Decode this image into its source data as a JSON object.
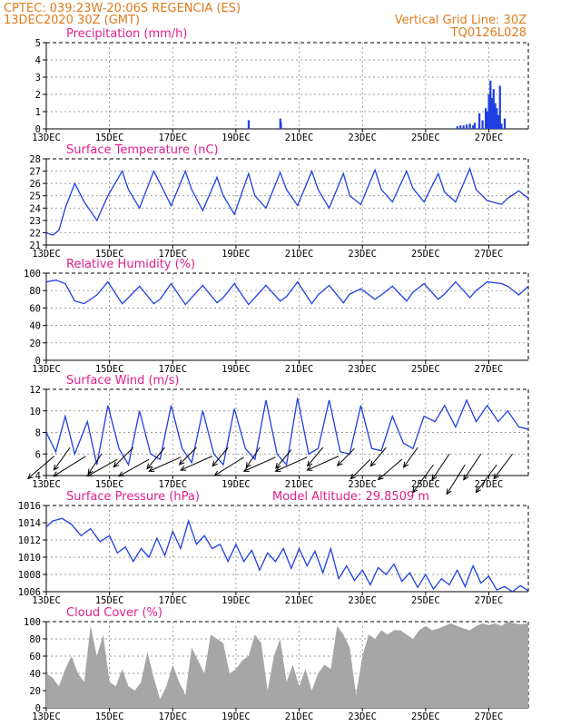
{
  "header": {
    "line1": "CPTEC:   039:23W-20:06S   REGENCIA (ES)",
    "line2": "13DEC2020 30Z (GMT)",
    "right1": "Vertical Grid Line: 30Z",
    "right2": "TQ0126L028"
  },
  "date_labels": [
    "13DEC",
    "15DEC",
    "17DEC",
    "19DEC",
    "21DEC",
    "23DEC",
    "25DEC",
    "27DEC"
  ],
  "colors": {
    "series": "#1f3fe0",
    "cloud": "#a6a6a6",
    "title": "#e0208a",
    "header": "#e07a1a"
  },
  "chart_data": [
    {
      "id": "precip",
      "type": "bar",
      "title": "Precipitation (mm/h)",
      "xlabel": "",
      "ylabel": "",
      "xlim": [
        13.0,
        28.25
      ],
      "ylim": [
        0,
        5
      ],
      "yticks": [
        0,
        1,
        2,
        3,
        4,
        5
      ],
      "x": [
        19.4,
        20.4,
        20.42,
        26.0,
        26.1,
        26.2,
        26.3,
        26.4,
        26.5,
        26.55,
        26.7,
        26.8,
        26.9,
        26.95,
        27.0,
        27.05,
        27.1,
        27.15,
        27.2,
        27.25,
        27.3,
        27.35,
        27.4,
        27.5
      ],
      "values": [
        0.5,
        0.6,
        0.4,
        0.15,
        0.2,
        0.2,
        0.25,
        0.3,
        0.2,
        0.35,
        0.9,
        0.5,
        1.2,
        1.0,
        2.0,
        2.8,
        1.8,
        2.3,
        1.5,
        1.2,
        0.8,
        2.5,
        0.3,
        0.6
      ]
    },
    {
      "id": "temperature",
      "type": "line",
      "title": "Surface Temperature (nC)",
      "xlabel": "",
      "ylabel": "",
      "xlim": [
        13.0,
        28.25
      ],
      "ylim": [
        21,
        28
      ],
      "yticks": [
        21,
        22,
        23,
        24,
        25,
        26,
        27,
        28
      ],
      "x": [
        13.0,
        13.2,
        13.4,
        13.6,
        13.9,
        14.2,
        14.6,
        14.95,
        15.4,
        15.6,
        15.95,
        16.4,
        16.6,
        16.95,
        17.4,
        17.6,
        17.95,
        18.4,
        18.6,
        18.95,
        19.4,
        19.6,
        19.95,
        20.4,
        20.6,
        20.95,
        21.4,
        21.6,
        21.95,
        22.4,
        22.6,
        22.95,
        23.4,
        23.6,
        23.95,
        24.4,
        24.6,
        24.95,
        25.4,
        25.6,
        25.95,
        26.4,
        26.6,
        26.95,
        27.4,
        27.6,
        27.95,
        28.25
      ],
      "values": [
        22.0,
        21.8,
        22.2,
        24.0,
        26.0,
        24.5,
        23.0,
        25.0,
        27.0,
        25.5,
        24.0,
        27.0,
        26.0,
        24.2,
        27.0,
        25.5,
        23.8,
        26.5,
        25.0,
        23.5,
        26.8,
        25.0,
        24.0,
        26.9,
        25.5,
        24.2,
        27.0,
        25.5,
        24.0,
        26.8,
        25.0,
        24.3,
        27.1,
        25.5,
        24.5,
        27.0,
        25.6,
        24.5,
        26.8,
        25.3,
        24.5,
        27.2,
        25.5,
        24.6,
        24.3,
        24.8,
        25.4,
        24.8
      ]
    },
    {
      "id": "humidity",
      "type": "line",
      "title": "Relative Humidity (%)",
      "xlabel": "",
      "ylabel": "",
      "xlim": [
        13.0,
        28.25
      ],
      "ylim": [
        0,
        100
      ],
      "yticks": [
        0,
        20,
        40,
        60,
        80,
        100
      ],
      "x": [
        13.0,
        13.3,
        13.6,
        13.9,
        14.2,
        14.6,
        14.95,
        15.4,
        15.6,
        15.95,
        16.4,
        16.6,
        16.95,
        17.4,
        17.6,
        17.95,
        18.4,
        18.6,
        18.95,
        19.4,
        19.6,
        19.95,
        20.4,
        20.6,
        20.95,
        21.4,
        21.6,
        21.95,
        22.4,
        22.6,
        22.95,
        23.4,
        23.6,
        23.95,
        24.4,
        24.6,
        24.95,
        25.4,
        25.6,
        25.95,
        26.4,
        26.6,
        26.95,
        27.4,
        27.6,
        27.95,
        28.25
      ],
      "values": [
        90,
        92,
        88,
        68,
        65,
        75,
        90,
        65,
        72,
        85,
        65,
        70,
        88,
        64,
        72,
        86,
        66,
        72,
        88,
        64,
        72,
        86,
        68,
        73,
        90,
        65,
        75,
        86,
        66,
        76,
        82,
        70,
        75,
        85,
        68,
        78,
        88,
        70,
        76,
        90,
        72,
        80,
        90,
        88,
        85,
        75,
        85
      ]
    },
    {
      "id": "wind",
      "type": "line",
      "title": "Surface Wind (m/s)",
      "xlabel": "",
      "ylabel": "",
      "xlim": [
        13.0,
        28.25
      ],
      "ylim": [
        4,
        12
      ],
      "yticks": [
        4,
        6,
        8,
        10,
        12
      ],
      "x": [
        13.0,
        13.3,
        13.6,
        13.9,
        14.3,
        14.6,
        14.95,
        15.3,
        15.6,
        15.95,
        16.3,
        16.6,
        16.95,
        17.3,
        17.6,
        17.95,
        18.3,
        18.6,
        18.95,
        19.3,
        19.6,
        19.95,
        20.3,
        20.6,
        20.95,
        21.3,
        21.6,
        21.95,
        22.3,
        22.6,
        22.95,
        23.3,
        23.6,
        23.95,
        24.3,
        24.6,
        24.95,
        25.3,
        25.6,
        25.95,
        26.3,
        26.6,
        26.95,
        27.3,
        27.6,
        27.95,
        28.25
      ],
      "values": [
        8.0,
        6.2,
        9.5,
        6.0,
        9.0,
        5.0,
        10.5,
        6.5,
        5.0,
        10.0,
        6.0,
        5.5,
        10.5,
        6.5,
        5.2,
        10.0,
        6.0,
        5.0,
        10.2,
        6.5,
        5.5,
        11.0,
        6.0,
        5.0,
        11.2,
        6.0,
        6.5,
        11.0,
        6.2,
        6.0,
        10.5,
        6.5,
        6.3,
        9.5,
        7.0,
        6.5,
        9.5,
        9.0,
        10.5,
        8.5,
        11.0,
        9.0,
        10.5,
        9.0,
        10.0,
        8.5,
        8.3
      ],
      "arrows": {
        "x": [
          13.25,
          13.75,
          14.25,
          14.75,
          15.25,
          15.75,
          16.25,
          16.75,
          17.25,
          17.75,
          18.25,
          18.75,
          19.25,
          19.75,
          20.25,
          20.75,
          21.25,
          21.75,
          22.25,
          22.75,
          23.25,
          23.75,
          24.25,
          24.75,
          25.25,
          25.75,
          26.25,
          26.75,
          27.25,
          27.75
        ],
        "u": [
          -0.7,
          -0.5,
          -0.8,
          -0.4,
          -0.9,
          -0.6,
          -0.9,
          -0.5,
          -0.9,
          -0.5,
          -0.9,
          -0.5,
          -0.8,
          -0.4,
          -0.9,
          -0.5,
          -0.9,
          -0.5,
          -0.9,
          -0.6,
          -0.6,
          -0.5,
          -0.7,
          -0.5,
          -0.6,
          -0.6,
          -0.5,
          -0.6,
          -0.6,
          -0.6
        ],
        "v": [
          -0.6,
          -0.7,
          -0.5,
          -0.6,
          -0.5,
          -0.6,
          -0.5,
          -0.6,
          -0.4,
          -0.5,
          -0.4,
          -0.6,
          -0.5,
          -0.6,
          -0.4,
          -0.6,
          -0.4,
          -0.6,
          -0.4,
          -0.6,
          -0.6,
          -0.6,
          -0.6,
          -0.7,
          -0.8,
          -0.9,
          -0.8,
          -0.9,
          -0.8,
          -0.8
        ],
        "y": [
          5.8,
          6.6,
          5.8,
          6.0,
          5.5,
          6.6,
          5.5,
          6.6,
          5.7,
          6.6,
          5.8,
          6.6,
          5.7,
          6.6,
          5.7,
          6.4,
          5.7,
          6.6,
          5.8,
          6.5,
          5.5,
          6.6,
          5.5,
          6.6,
          5.0,
          6.0,
          5.0,
          6.0,
          5.0,
          6.0
        ],
        "len": [
          1.0,
          0.8,
          1.1,
          0.7,
          1.0,
          0.8,
          1.0,
          0.8,
          1.0,
          0.7,
          1.0,
          0.7,
          1.0,
          0.7,
          1.0,
          0.7,
          1.0,
          0.7,
          1.0,
          0.7,
          0.8,
          0.7,
          0.9,
          0.7,
          1.0,
          0.9,
          1.0,
          0.9,
          1.0,
          0.9
        ]
      }
    },
    {
      "id": "pressure",
      "type": "line",
      "title": "Surface Pressure (hPa)",
      "annotation": "Model Altitude: 29.8509 m",
      "xlabel": "",
      "ylabel": "",
      "xlim": [
        13.0,
        28.25
      ],
      "ylim": [
        1006,
        1016
      ],
      "yticks": [
        1006,
        1008,
        1010,
        1012,
        1014,
        1016
      ],
      "x": [
        13.0,
        13.2,
        13.5,
        13.8,
        14.1,
        14.4,
        14.7,
        15.0,
        15.25,
        15.5,
        15.75,
        16.0,
        16.25,
        16.5,
        16.75,
        17.0,
        17.25,
        17.5,
        17.75,
        18.0,
        18.25,
        18.5,
        18.75,
        19.0,
        19.25,
        19.5,
        19.75,
        20.0,
        20.25,
        20.5,
        20.75,
        21.0,
        21.25,
        21.5,
        21.75,
        22.0,
        22.25,
        22.5,
        22.75,
        23.0,
        23.25,
        23.5,
        23.75,
        24.0,
        24.25,
        24.5,
        24.75,
        25.0,
        25.25,
        25.5,
        25.75,
        26.0,
        26.25,
        26.5,
        26.75,
        27.0,
        27.25,
        27.5,
        27.75,
        28.0,
        28.25
      ],
      "values": [
        1013.5,
        1014.2,
        1014.5,
        1013.8,
        1012.5,
        1013.3,
        1011.8,
        1012.5,
        1010.5,
        1011.2,
        1009.5,
        1011.0,
        1010.0,
        1012.2,
        1010.2,
        1013.0,
        1011.0,
        1014.2,
        1011.5,
        1012.5,
        1011.0,
        1011.5,
        1009.5,
        1011.5,
        1009.5,
        1010.8,
        1008.5,
        1010.5,
        1009.5,
        1011.0,
        1008.7,
        1011.0,
        1009.0,
        1010.7,
        1008.2,
        1011.0,
        1007.5,
        1009.0,
        1007.3,
        1008.5,
        1006.8,
        1008.8,
        1008.0,
        1009.2,
        1007.2,
        1008.2,
        1006.5,
        1008.0,
        1006.3,
        1007.5,
        1006.8,
        1008.5,
        1006.6,
        1009.0,
        1007.0,
        1007.8,
        1006.2,
        1006.6,
        1006.0,
        1006.7,
        1006.1
      ]
    },
    {
      "id": "cloud",
      "type": "area",
      "title": "Cloud Cover (%)",
      "xlabel": "",
      "ylabel": "",
      "xlim": [
        13.0,
        28.25
      ],
      "ylim": [
        0,
        100
      ],
      "yticks": [
        0,
        20,
        40,
        60,
        80,
        100
      ],
      "x": [
        13.0,
        13.2,
        13.4,
        13.6,
        13.8,
        14.0,
        14.2,
        14.4,
        14.6,
        14.8,
        15.0,
        15.2,
        15.4,
        15.6,
        15.8,
        16.0,
        16.2,
        16.4,
        16.6,
        16.8,
        17.0,
        17.2,
        17.4,
        17.6,
        17.8,
        18.0,
        18.2,
        18.4,
        18.6,
        18.8,
        19.0,
        19.2,
        19.4,
        19.6,
        19.8,
        20.0,
        20.2,
        20.4,
        20.6,
        20.8,
        21.0,
        21.2,
        21.4,
        21.6,
        21.8,
        22.0,
        22.2,
        22.4,
        22.6,
        22.8,
        23.0,
        23.2,
        23.4,
        23.6,
        23.8,
        24.0,
        24.2,
        24.4,
        24.6,
        24.8,
        25.0,
        25.2,
        25.4,
        25.6,
        25.8,
        26.0,
        26.2,
        26.4,
        26.6,
        26.8,
        27.0,
        27.2,
        27.4,
        27.6,
        27.8,
        28.0,
        28.25
      ],
      "values": [
        40,
        35,
        25,
        45,
        60,
        40,
        30,
        95,
        60,
        85,
        30,
        25,
        45,
        25,
        20,
        30,
        65,
        35,
        10,
        25,
        50,
        30,
        15,
        70,
        55,
        40,
        85,
        80,
        75,
        40,
        45,
        55,
        60,
        85,
        75,
        20,
        60,
        80,
        30,
        50,
        25,
        45,
        20,
        40,
        50,
        45,
        95,
        85,
        70,
        15,
        60,
        85,
        80,
        90,
        85,
        90,
        90,
        85,
        80,
        90,
        95,
        90,
        92,
        95,
        98,
        95,
        92,
        90,
        95,
        98,
        96,
        98,
        95,
        100,
        98,
        97,
        98
      ]
    }
  ]
}
